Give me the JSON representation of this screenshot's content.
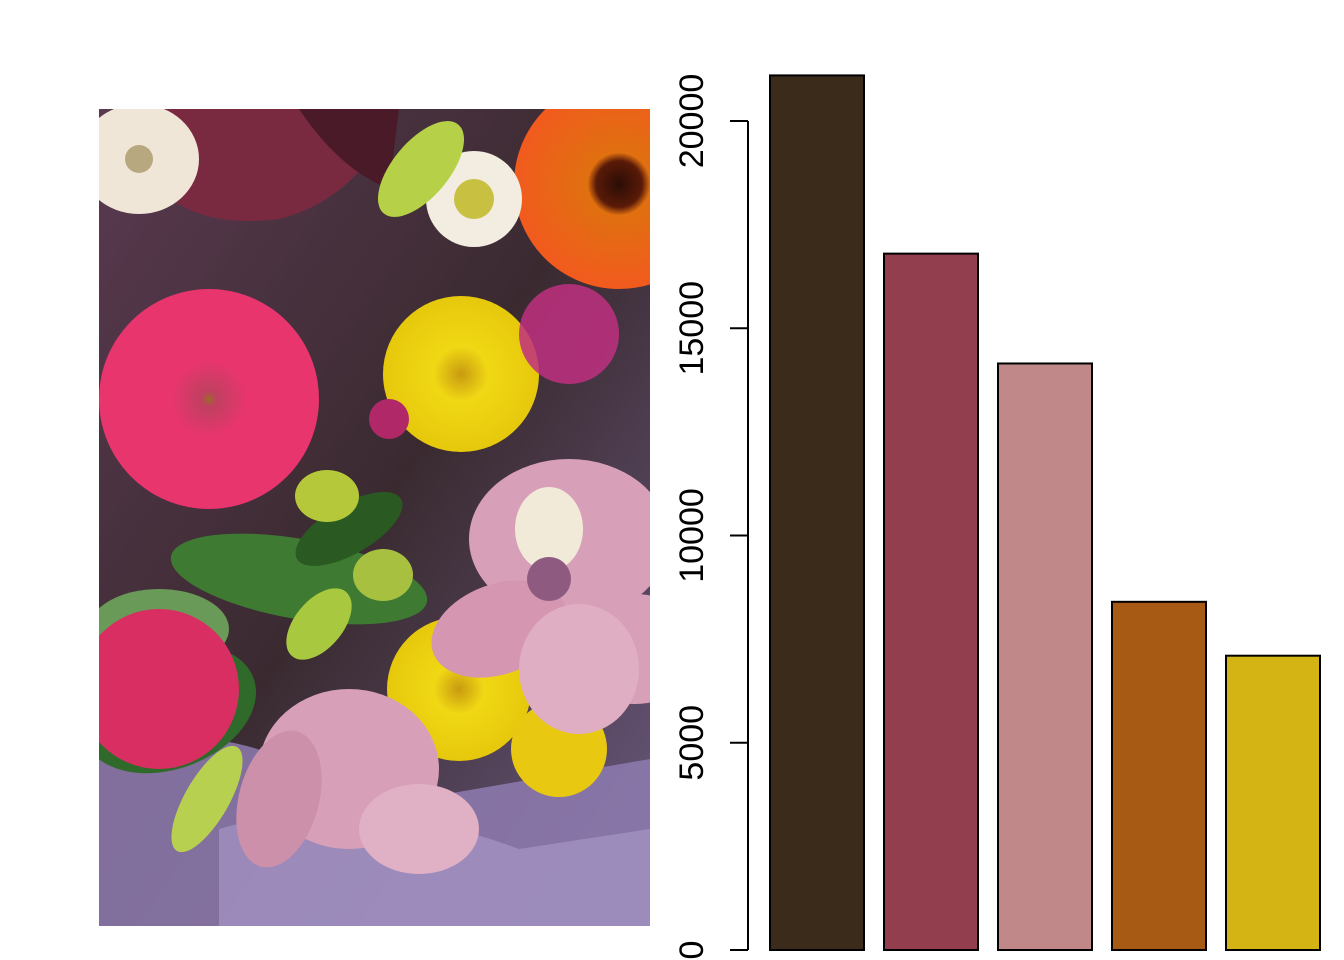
{
  "photo": {
    "subject": "flower-bouquet",
    "palette": [
      "#3a2b1b",
      "#923e4e",
      "#c08888",
      "#a75a13",
      "#d4b314",
      "#e8356e",
      "#f0d814",
      "#f25a1e",
      "#5a8a38",
      "#8e7bb0"
    ]
  },
  "chart_data": {
    "type": "bar",
    "title": "",
    "xlabel": "",
    "ylabel": "",
    "ylim": [
      0,
      21200
    ],
    "yticks": [
      0,
      5000,
      10000,
      15000,
      20000
    ],
    "grid": false,
    "legend": "none",
    "bars": [
      {
        "value": 21100,
        "color": "#3a2b1b"
      },
      {
        "value": 16800,
        "color": "#923e4e"
      },
      {
        "value": 14150,
        "color": "#c08888"
      },
      {
        "value": 8400,
        "color": "#a75a13"
      },
      {
        "value": 7100,
        "color": "#d4b314"
      }
    ]
  }
}
